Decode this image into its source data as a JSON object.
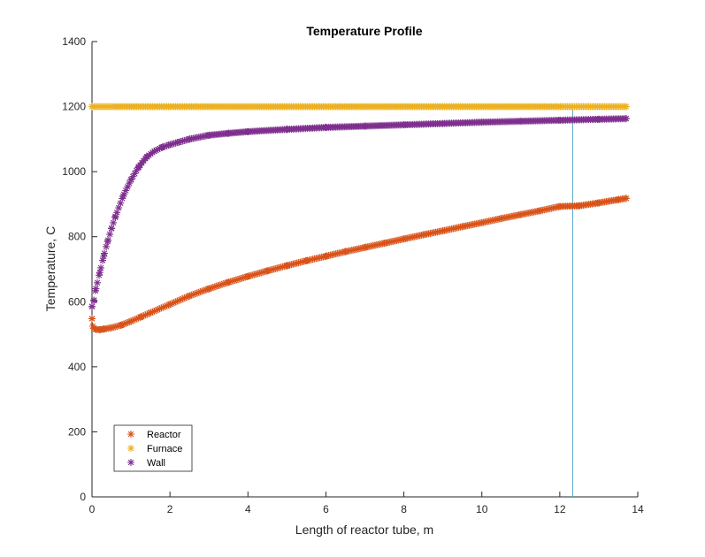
{
  "chart_data": {
    "type": "scatter",
    "title": "Temperature Profile",
    "xlabel": "Length of reactor tube, m",
    "ylabel": "Temperature, C",
    "xlim": [
      0,
      14
    ],
    "ylim": [
      0,
      1400
    ],
    "xticks": [
      0,
      2,
      4,
      6,
      8,
      10,
      12,
      14
    ],
    "yticks": [
      0,
      200,
      400,
      600,
      800,
      1000,
      1200,
      1400
    ],
    "grid": false,
    "legend_position": "bottom-left",
    "marker": "*",
    "series": [
      {
        "name": "Reactor",
        "color": "#D95319",
        "x": [
          0,
          0.02,
          0.05,
          0.1,
          0.2,
          0.3,
          0.5,
          0.75,
          1.0,
          1.25,
          1.5,
          2.0,
          2.5,
          3.0,
          3.5,
          4.0,
          4.5,
          5.0,
          5.5,
          6.0,
          6.5,
          7.0,
          7.5,
          8.0,
          8.5,
          9.0,
          9.5,
          10.0,
          10.5,
          11.0,
          11.5,
          12.0,
          12.5,
          13.0,
          13.5,
          13.7
        ],
        "y": [
          548,
          525,
          518,
          515,
          514,
          516,
          520,
          528,
          540,
          553,
          566,
          592,
          618,
          640,
          660,
          678,
          695,
          711,
          726,
          740,
          754,
          767,
          780,
          793,
          806,
          818,
          831,
          843,
          856,
          868,
          880,
          893,
          895,
          904,
          914,
          918
        ]
      },
      {
        "name": "Furnace",
        "color": "#EDB120",
        "x": [
          0,
          13.7
        ],
        "y": [
          1200,
          1200
        ]
      },
      {
        "name": "Wall",
        "color": "#7E2F8E",
        "x": [
          0,
          0.05,
          0.1,
          0.2,
          0.3,
          0.4,
          0.5,
          0.6,
          0.8,
          1.0,
          1.2,
          1.4,
          1.6,
          1.8,
          2.0,
          2.2,
          2.5,
          3.0,
          3.5,
          4.0,
          5.0,
          6.0,
          7.0,
          8.0,
          9.0,
          10.0,
          11.0,
          12.0,
          13.0,
          13.7
        ],
        "y": [
          585,
          605,
          640,
          690,
          740,
          785,
          825,
          862,
          925,
          975,
          1015,
          1045,
          1063,
          1075,
          1083,
          1090,
          1100,
          1112,
          1118,
          1123,
          1130,
          1136,
          1140,
          1144,
          1148,
          1152,
          1155,
          1158,
          1161,
          1163
        ]
      }
    ],
    "vertical_line": {
      "x": 12.33,
      "y_from": 0,
      "y_to": 1200,
      "color": "#4DA2C8"
    }
  }
}
